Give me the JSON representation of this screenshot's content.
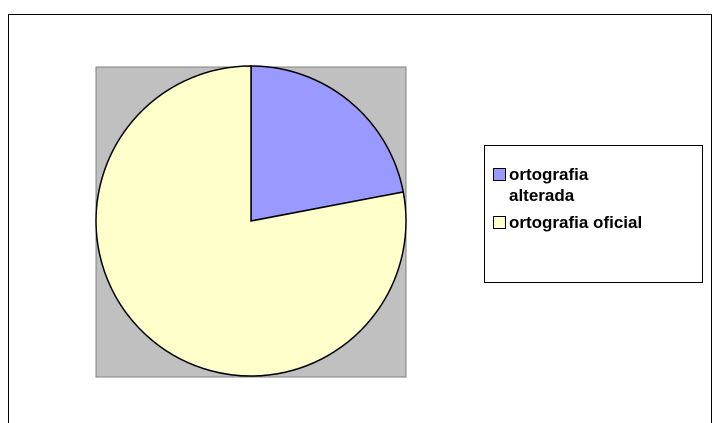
{
  "chart_data": {
    "type": "pie",
    "categories": [
      "ortografia alterada",
      "ortografia oficial"
    ],
    "values": [
      22,
      78
    ],
    "colors": [
      "#9999ff",
      "#ffffcc"
    ],
    "legend": "right"
  }
}
